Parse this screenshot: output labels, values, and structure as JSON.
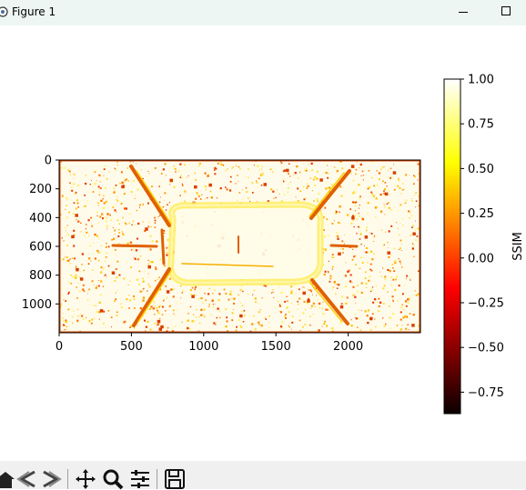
{
  "window": {
    "title": "Figure 1"
  },
  "chart_data": {
    "type": "heatmap",
    "title": "",
    "xlabel": "",
    "ylabel": "",
    "xlim": [
      0,
      2500
    ],
    "ylim": [
      1200,
      0
    ],
    "xticks": [
      0,
      500,
      1000,
      1500,
      2000
    ],
    "yticks": [
      0,
      200,
      400,
      600,
      800,
      1000
    ],
    "colormap": "hot",
    "colorbar": {
      "label": "SSIM",
      "range": [
        -0.87,
        1.0
      ],
      "ticks": [
        "1.00",
        "0.75",
        "0.50",
        "0.25",
        "0.00",
        "−0.25",
        "−0.50",
        "−0.75"
      ],
      "tick_values": [
        1.0,
        0.75,
        0.5,
        0.25,
        0.0,
        -0.25,
        -0.5,
        -0.75
      ]
    },
    "grid": false
  },
  "toolbar": {
    "buttons": [
      "home-icon",
      "back-icon",
      "forward-icon",
      "pan-icon",
      "zoom-icon",
      "configure-subplots-icon",
      "save-icon"
    ]
  }
}
